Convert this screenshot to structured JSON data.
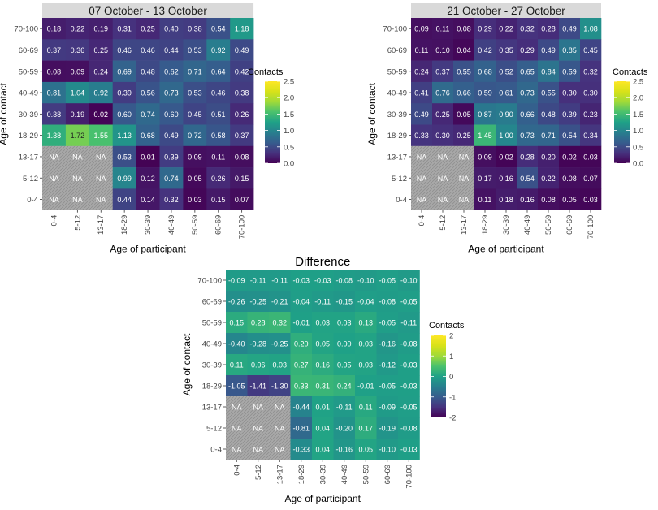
{
  "chart_data": [
    {
      "type": "heatmap",
      "title": "07 October - 13 October",
      "xlabel": "Age of participant",
      "ylabel": "Age of contact",
      "x_categories": [
        "0-4",
        "5-12",
        "13-17",
        "18-29",
        "30-39",
        "40-49",
        "50-59",
        "60-69",
        "70-100"
      ],
      "y_categories": [
        "70-100",
        "60-69",
        "50-59",
        "40-49",
        "30-39",
        "18-29",
        "13-17",
        "5-12",
        "0-4"
      ],
      "values": [
        [
          0.18,
          0.22,
          0.19,
          0.31,
          0.25,
          0.4,
          0.38,
          0.54,
          1.18
        ],
        [
          0.37,
          0.36,
          0.25,
          0.46,
          0.46,
          0.44,
          0.53,
          0.92,
          0.49
        ],
        [
          0.08,
          0.09,
          0.24,
          0.69,
          0.48,
          0.62,
          0.71,
          0.64,
          0.42
        ],
        [
          0.81,
          1.04,
          0.92,
          0.39,
          0.56,
          0.73,
          0.53,
          0.46,
          0.38
        ],
        [
          0.38,
          0.19,
          0.02,
          0.6,
          0.74,
          0.6,
          0.45,
          0.51,
          0.26
        ],
        [
          1.38,
          1.72,
          1.55,
          1.13,
          0.68,
          0.49,
          0.72,
          0.58,
          0.37
        ],
        [
          null,
          null,
          null,
          0.53,
          0.01,
          0.39,
          0.09,
          0.11,
          0.08
        ],
        [
          null,
          null,
          null,
          0.99,
          0.12,
          0.74,
          0.05,
          0.26,
          0.15
        ],
        [
          null,
          null,
          null,
          0.44,
          0.14,
          0.32,
          0.03,
          0.15,
          0.07
        ]
      ],
      "na_label": "NA",
      "colorbar": {
        "title": "Contacts",
        "range": [
          0,
          2.5
        ],
        "ticks": [
          "2.5",
          "2.0",
          "1.5",
          "1.0",
          "0.5",
          "0.0"
        ]
      }
    },
    {
      "type": "heatmap",
      "title": "21 October - 27 October",
      "xlabel": "Age of participant",
      "ylabel": "Age of contact",
      "x_categories": [
        "0-4",
        "5-12",
        "13-17",
        "18-29",
        "30-39",
        "40-49",
        "50-59",
        "60-69",
        "70-100"
      ],
      "y_categories": [
        "70-100",
        "60-69",
        "50-59",
        "40-49",
        "30-39",
        "18-29",
        "13-17",
        "5-12",
        "0-4"
      ],
      "values": [
        [
          0.09,
          0.11,
          0.08,
          0.29,
          0.22,
          0.32,
          0.28,
          0.49,
          1.08
        ],
        [
          0.11,
          0.1,
          0.04,
          0.42,
          0.35,
          0.29,
          0.49,
          0.85,
          0.45
        ],
        [
          0.24,
          0.37,
          0.55,
          0.68,
          0.52,
          0.65,
          0.84,
          0.59,
          0.32
        ],
        [
          0.41,
          0.76,
          0.66,
          0.59,
          0.61,
          0.73,
          0.55,
          0.3,
          0.3
        ],
        [
          0.49,
          0.25,
          0.05,
          0.87,
          0.9,
          0.66,
          0.48,
          0.39,
          0.23
        ],
        [
          0.33,
          0.3,
          0.25,
          1.45,
          1.0,
          0.73,
          0.71,
          0.54,
          0.34
        ],
        [
          null,
          null,
          null,
          0.09,
          0.02,
          0.28,
          0.2,
          0.02,
          0.03
        ],
        [
          null,
          null,
          null,
          0.17,
          0.16,
          0.54,
          0.22,
          0.08,
          0.07
        ],
        [
          null,
          null,
          null,
          0.11,
          0.18,
          0.16,
          0.08,
          0.05,
          0.03
        ]
      ],
      "na_label": "NA",
      "colorbar": {
        "title": "Contacts",
        "range": [
          0,
          2.5
        ],
        "ticks": [
          "2.5",
          "2.0",
          "1.5",
          "1.0",
          "0.5",
          "0.0"
        ]
      }
    },
    {
      "type": "heatmap",
      "title": "Difference",
      "xlabel": "Age of participant",
      "ylabel": "Age of contact",
      "x_categories": [
        "0-4",
        "5-12",
        "13-17",
        "18-29",
        "30-39",
        "40-49",
        "50-59",
        "60-69",
        "70-100"
      ],
      "y_categories": [
        "70-100",
        "60-69",
        "50-59",
        "40-49",
        "30-39",
        "18-29",
        "13-17",
        "5-12",
        "0-4"
      ],
      "values": [
        [
          -0.09,
          -0.11,
          -0.11,
          -0.03,
          -0.03,
          -0.08,
          -0.1,
          -0.05,
          -0.1
        ],
        [
          -0.26,
          -0.25,
          -0.21,
          -0.04,
          -0.11,
          -0.15,
          -0.04,
          -0.08,
          -0.05
        ],
        [
          0.15,
          0.28,
          0.32,
          -0.01,
          0.03,
          0.03,
          0.13,
          -0.05,
          -0.11
        ],
        [
          -0.4,
          -0.28,
          -0.25,
          0.2,
          0.05,
          0.0,
          0.03,
          -0.16,
          -0.08
        ],
        [
          0.11,
          0.06,
          0.03,
          0.27,
          0.16,
          0.05,
          0.03,
          -0.12,
          -0.03
        ],
        [
          -1.05,
          -1.41,
          -1.3,
          0.33,
          0.31,
          0.24,
          -0.01,
          -0.05,
          -0.03
        ],
        [
          null,
          null,
          null,
          -0.44,
          0.01,
          -0.11,
          0.11,
          -0.09,
          -0.05
        ],
        [
          null,
          null,
          null,
          -0.81,
          0.04,
          -0.2,
          0.17,
          -0.19,
          -0.08
        ],
        [
          null,
          null,
          null,
          -0.33,
          0.04,
          -0.16,
          0.05,
          -0.1,
          -0.03
        ]
      ],
      "na_label": "NA",
      "colorbar": {
        "title": "Contacts",
        "range": [
          -2,
          2
        ],
        "ticks": [
          "2",
          "1",
          "0",
          "-1",
          "-2"
        ]
      }
    }
  ]
}
